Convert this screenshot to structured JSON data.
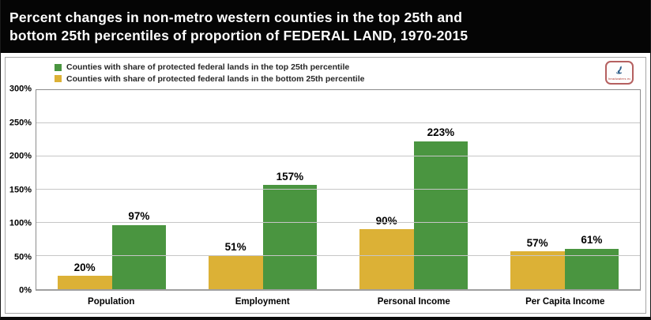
{
  "title": {
    "line1": "Percent changes in non-metro western counties in the top 25th and",
    "line2": "bottom 25th percentiles of proportion of FEDERAL LAND, 1970-2015"
  },
  "legend": [
    {
      "label": "Counties with share of protected federal lands in the top 25th percentile",
      "color": "#4a9540"
    },
    {
      "label": "Counties with share of protected federal lands in the bottom 25th percentile",
      "color": "#dcb136"
    }
  ],
  "logo": {
    "text": "headwaters economics"
  },
  "colors": {
    "green": "#4a9540",
    "yellow": "#dcb136",
    "banner_bg": "#050505",
    "banner_text": "#ffffff",
    "gridline": "#c6c6c6",
    "plot_border": "#8c8c8c"
  },
  "chart_data": {
    "type": "bar",
    "title": "Percent changes in non-metro western counties in the top 25th and bottom 25th percentiles of proportion of FEDERAL LAND, 1970-2015",
    "categories": [
      "Population",
      "Employment",
      "Personal Income",
      "Per Capita Income"
    ],
    "series": [
      {
        "name": "Counties with share of protected federal lands in the bottom 25th percentile",
        "color": "#dcb136",
        "values": [
          20,
          51,
          90,
          57
        ]
      },
      {
        "name": "Counties with share of protected federal lands in the top 25th percentile",
        "color": "#4a9540",
        "values": [
          97,
          157,
          223,
          61
        ]
      }
    ],
    "value_suffix": "%",
    "xlabel": "",
    "ylabel": "",
    "ylim": [
      0,
      300
    ],
    "yticks": [
      "0%",
      "50%",
      "100%",
      "150%",
      "200%",
      "250%",
      "300%"
    ],
    "grid": true,
    "legend_position": "top-left",
    "bar_value_labels": true
  }
}
